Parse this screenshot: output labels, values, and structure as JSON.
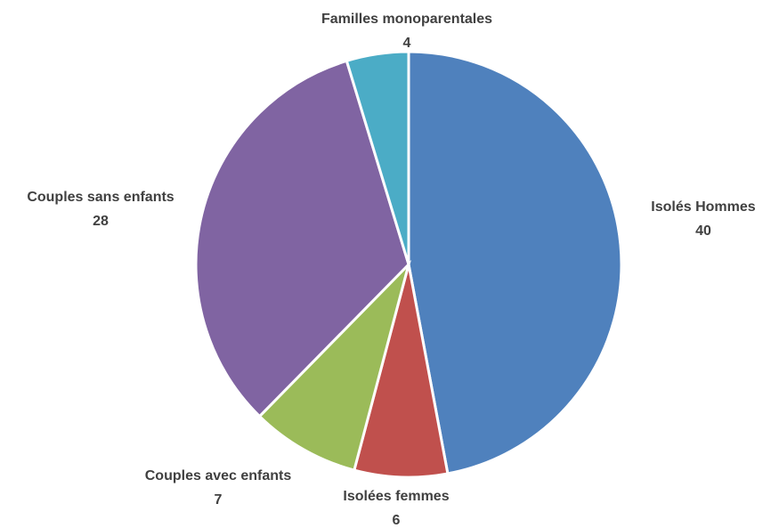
{
  "chart_data": {
    "type": "pie",
    "categories": [
      "Isolés Hommes",
      "Isolées femmes",
      "Couples avec enfants",
      "Couples sans enfants",
      "Familles monoparentales"
    ],
    "values": [
      40,
      6,
      7,
      28,
      4
    ],
    "colors": [
      "#4f81bd",
      "#c0504d",
      "#9bbb59",
      "#8064a2",
      "#4bacc6"
    ]
  }
}
